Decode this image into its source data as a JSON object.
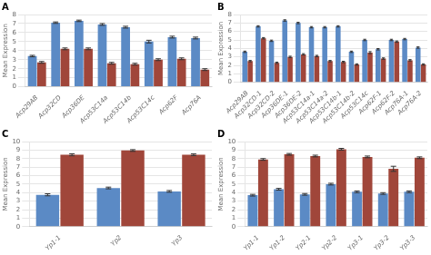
{
  "chart_data": [
    {
      "type": "bar",
      "title": "A",
      "categories": [
        "Acp29AB",
        "Acp32CD",
        "Acp36DE",
        "Acp53C14a",
        "Acp53C14b",
        "Acp53C14c",
        "Acp62F",
        "Acp76A"
      ],
      "series": [
        {
          "color": "#5b8ac5",
          "values": [
            3.4,
            7.1,
            7.3,
            6.9,
            6.6,
            5.0,
            5.5,
            5.4
          ],
          "errors": [
            0.08,
            0.08,
            0.08,
            0.1,
            0.1,
            0.15,
            0.1,
            0.1
          ]
        },
        {
          "color": "#a0463a",
          "values": [
            2.7,
            4.2,
            4.2,
            2.6,
            2.5,
            3.0,
            3.1,
            1.9
          ],
          "errors": [
            0.1,
            0.1,
            0.1,
            0.1,
            0.1,
            0.1,
            0.1,
            0.1
          ]
        }
      ],
      "ylabel": "Mean Expression",
      "ylim": [
        0,
        8
      ],
      "yticks": [
        0,
        1,
        2,
        3,
        4,
        5,
        6,
        7,
        8
      ],
      "grid": true
    },
    {
      "type": "bar",
      "title": "B",
      "categories": [
        "Acp29AB",
        "Acp32CD-1",
        "Acp32CD-2",
        "Acp36DE-1",
        "Acp36DE-2",
        "Acp53C14a-1",
        "Acp53C14a-2",
        "Acp53C14b-1",
        "Acp53C14b-2",
        "Acp53C14c",
        "Acp62F-1",
        "Acp62F-2",
        "Acp76A-1",
        "Acp76A-2"
      ],
      "series": [
        {
          "color": "#5b8ac5",
          "values": [
            3.6,
            6.6,
            4.9,
            7.3,
            7.0,
            6.5,
            6.5,
            6.6,
            3.6,
            5.0,
            3.9,
            5.0,
            5.1,
            4.1
          ],
          "errors": [
            0.08,
            0.08,
            0.08,
            0.08,
            0.08,
            0.08,
            0.08,
            0.08,
            0.08,
            0.08,
            0.08,
            0.08,
            0.08,
            0.08
          ]
        },
        {
          "color": "#a0463a",
          "values": [
            2.5,
            5.2,
            2.3,
            3.0,
            3.3,
            3.1,
            2.5,
            2.4,
            2.1,
            3.5,
            2.8,
            4.8,
            2.6,
            2.1
          ],
          "errors": [
            0.08,
            0.08,
            0.08,
            0.08,
            0.08,
            0.08,
            0.08,
            0.08,
            0.08,
            0.12,
            0.08,
            0.08,
            0.08,
            0.08
          ]
        }
      ],
      "ylabel": "Mean Expression",
      "ylim": [
        0,
        8
      ],
      "yticks": [
        0,
        1,
        2,
        3,
        4,
        5,
        6,
        7,
        8
      ],
      "grid": true
    },
    {
      "type": "bar",
      "title": "C",
      "categories": [
        "Yp1-1",
        "Yp2",
        "Yp3"
      ],
      "series": [
        {
          "color": "#5b8ac5",
          "values": [
            3.75,
            4.55,
            4.15
          ],
          "errors": [
            0.12,
            0.1,
            0.1
          ]
        },
        {
          "color": "#a0463a",
          "values": [
            8.45,
            8.95,
            8.45
          ],
          "errors": [
            0.12,
            0.1,
            0.1
          ]
        }
      ],
      "ylabel": "Mean Expression",
      "ylim": [
        0,
        10
      ],
      "yticks": [
        0,
        1,
        2,
        3,
        4,
        5,
        6,
        7,
        8,
        9,
        10
      ],
      "grid": true
    },
    {
      "type": "bar",
      "title": "D",
      "categories": [
        "Yp1-1",
        "Yp1-2",
        "Yp2-1",
        "Yp2-2",
        "Yp3-1",
        "Yp3-2",
        "Yp3-3"
      ],
      "series": [
        {
          "color": "#5b8ac5",
          "values": [
            3.7,
            4.4,
            3.8,
            5.0,
            4.1,
            3.9,
            4.1
          ],
          "errors": [
            0.1,
            0.1,
            0.1,
            0.1,
            0.1,
            0.1,
            0.1
          ]
        },
        {
          "color": "#a0463a",
          "values": [
            7.9,
            8.5,
            8.3,
            9.1,
            8.2,
            6.8,
            8.1
          ],
          "errors": [
            0.1,
            0.1,
            0.1,
            0.1,
            0.1,
            0.3,
            0.1
          ]
        }
      ],
      "ylabel": "Mean Expression",
      "ylim": [
        0,
        10
      ],
      "yticks": [
        0,
        1,
        2,
        3,
        4,
        5,
        6,
        7,
        8,
        9,
        10
      ],
      "grid": true
    }
  ]
}
